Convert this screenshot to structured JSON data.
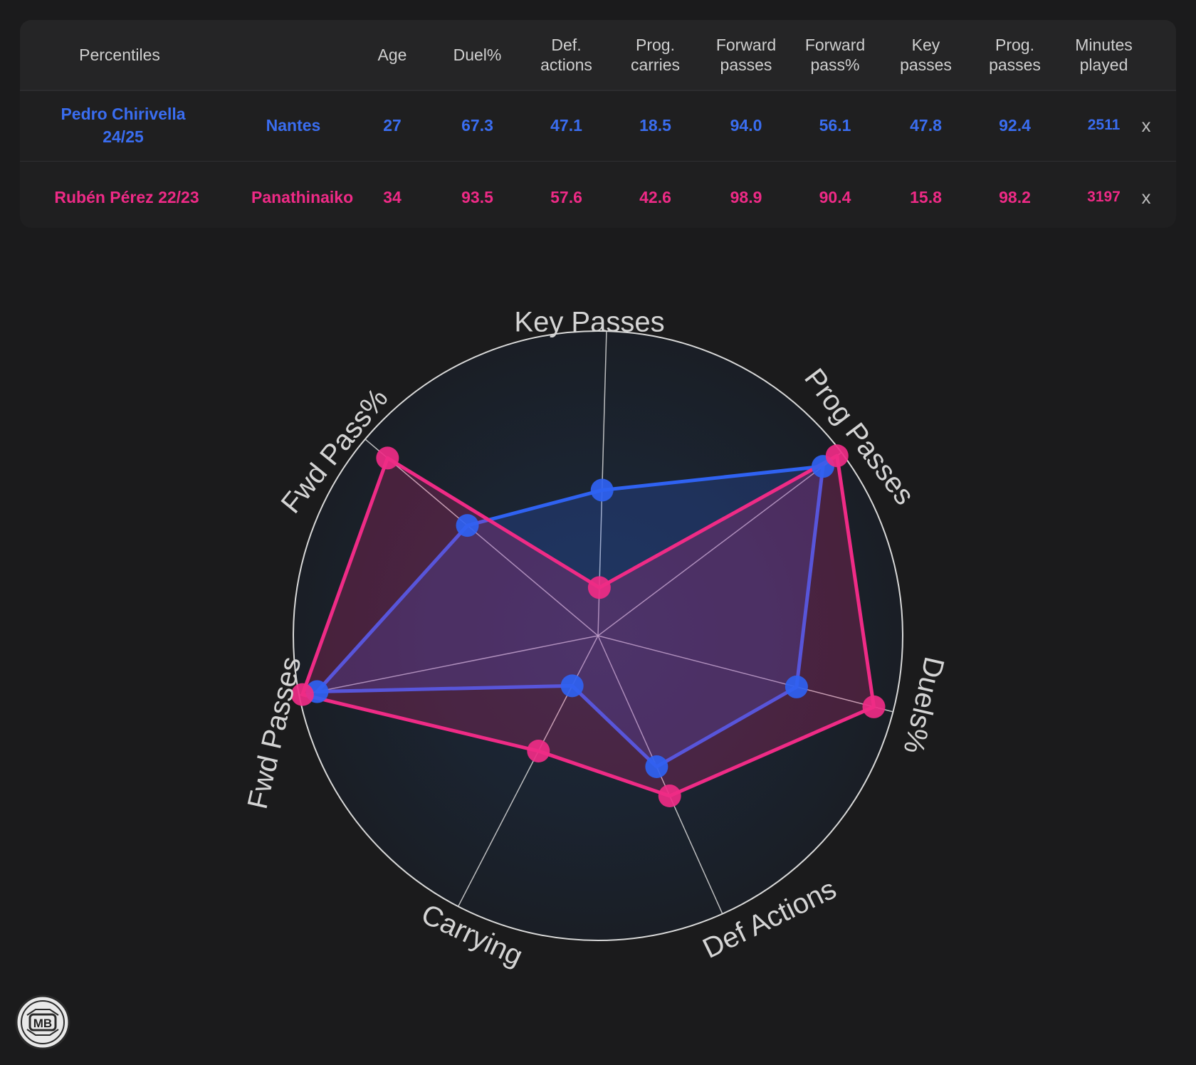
{
  "table": {
    "headers": [
      {
        "key": "percentiles",
        "label": "Percentiles"
      },
      {
        "key": "age",
        "label": "Age"
      },
      {
        "key": "duel",
        "label": "Duel%"
      },
      {
        "key": "def",
        "label": "Def.\nactions"
      },
      {
        "key": "progc",
        "label": "Prog.\ncarries"
      },
      {
        "key": "fwd",
        "label": "Forward\npasses"
      },
      {
        "key": "fwdp",
        "label": "Forward\npass%"
      },
      {
        "key": "key",
        "label": "Key\npasses"
      },
      {
        "key": "progp",
        "label": "Prog.\npasses"
      },
      {
        "key": "min",
        "label": "Minutes\nplayed"
      }
    ],
    "rows": [
      {
        "player": "Pedro Chirivella 24/25",
        "team": "Nantes",
        "age": "27",
        "duel": "67.3",
        "def": "47.1",
        "progc": "18.5",
        "fwd": "94.0",
        "fwdp": "56.1",
        "key": "47.8",
        "progp": "92.4",
        "min": "2511",
        "close": "x"
      },
      {
        "player": "Rubén Pérez 22/23",
        "team": "Panathinaikos",
        "age": "34",
        "duel": "93.5",
        "def": "57.6",
        "progc": "42.6",
        "fwd": "98.9",
        "fwdp": "90.4",
        "key": "15.8",
        "progp": "98.2",
        "min": "3197",
        "close": "x"
      }
    ]
  },
  "chart_data": {
    "type": "radar",
    "axes": [
      "Key Passes",
      "Prog Passes",
      "Duels%",
      "Def Actions",
      "Carrying",
      "Fwd Passes",
      "Fwd Pass%"
    ],
    "range": [
      0,
      100
    ],
    "series": [
      {
        "name": "Pedro Chirivella 24/25",
        "color": "#2f62f2",
        "values": [
          47.8,
          92.4,
          67.3,
          47.1,
          18.5,
          94.0,
          56.1
        ]
      },
      {
        "name": "Rubén Pérez 22/23",
        "color": "#ef2b86",
        "values": [
          15.8,
          98.2,
          93.5,
          57.6,
          42.6,
          98.9,
          90.4
        ]
      }
    ]
  },
  "logo": {
    "text": "MB"
  }
}
